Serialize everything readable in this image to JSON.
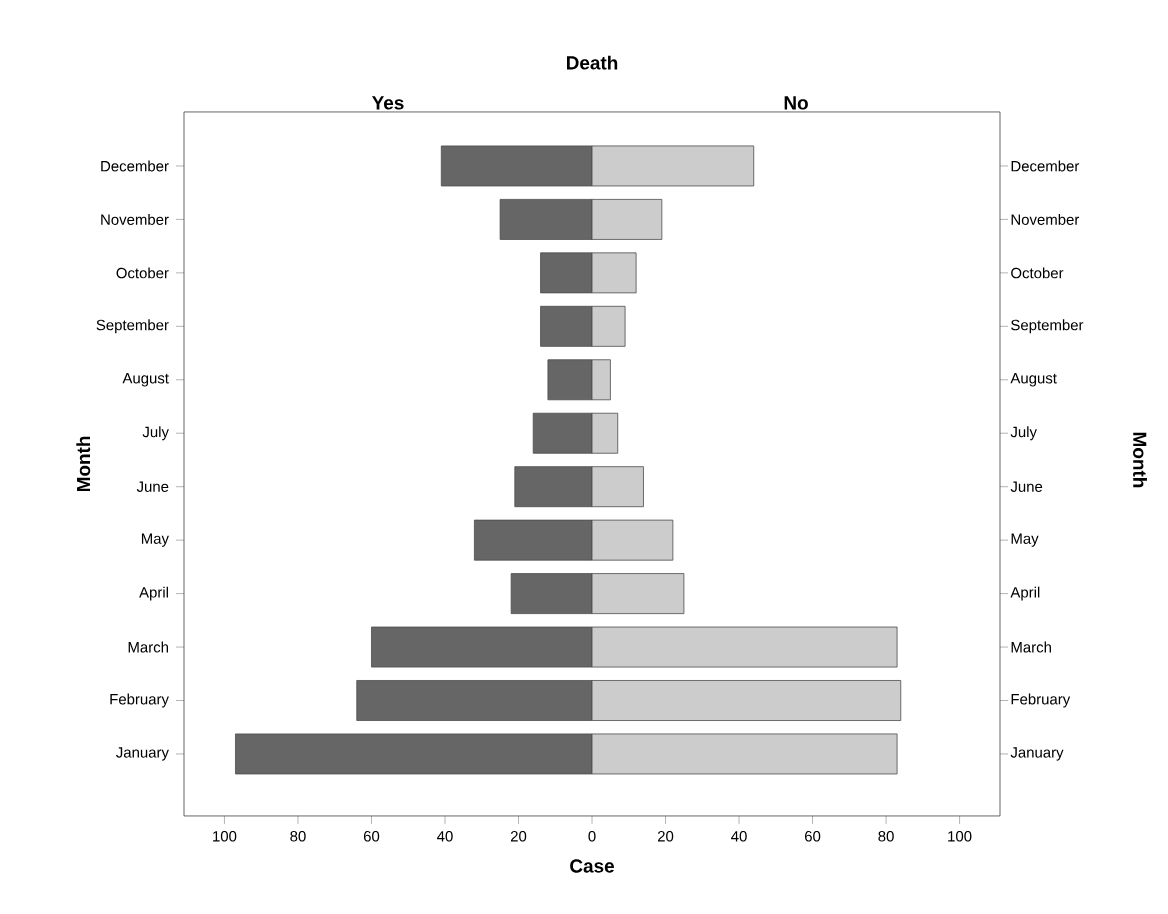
{
  "chart_data": {
    "type": "bar",
    "orientation": "horizontal",
    "stacked": true,
    "legend_title": "Death",
    "xlabel": "Case",
    "ylabel": "Month",
    "y2label": "Month",
    "categories": [
      "December",
      "November",
      "October",
      "September",
      "August",
      "July",
      "June",
      "May",
      "April",
      "March",
      "February",
      "January"
    ],
    "series": [
      {
        "name": "Yes",
        "color": "#666666",
        "values": [
          -41,
          -25,
          -14,
          -14,
          -12,
          -16,
          -21,
          -32,
          -22,
          -60,
          -64,
          -97
        ]
      },
      {
        "name": "No",
        "color": "#cccccc",
        "values": [
          44,
          19,
          12,
          9,
          5,
          7,
          14,
          22,
          25,
          83,
          84,
          83
        ]
      }
    ],
    "xlim": [
      -111,
      111
    ],
    "xticks": [
      {
        "value": -100,
        "label": "100"
      },
      {
        "value": -80,
        "label": "80"
      },
      {
        "value": -60,
        "label": "60"
      },
      {
        "value": -40,
        "label": "40"
      },
      {
        "value": -20,
        "label": "20"
      },
      0,
      20,
      40,
      60,
      80,
      100
    ],
    "grid": false
  }
}
